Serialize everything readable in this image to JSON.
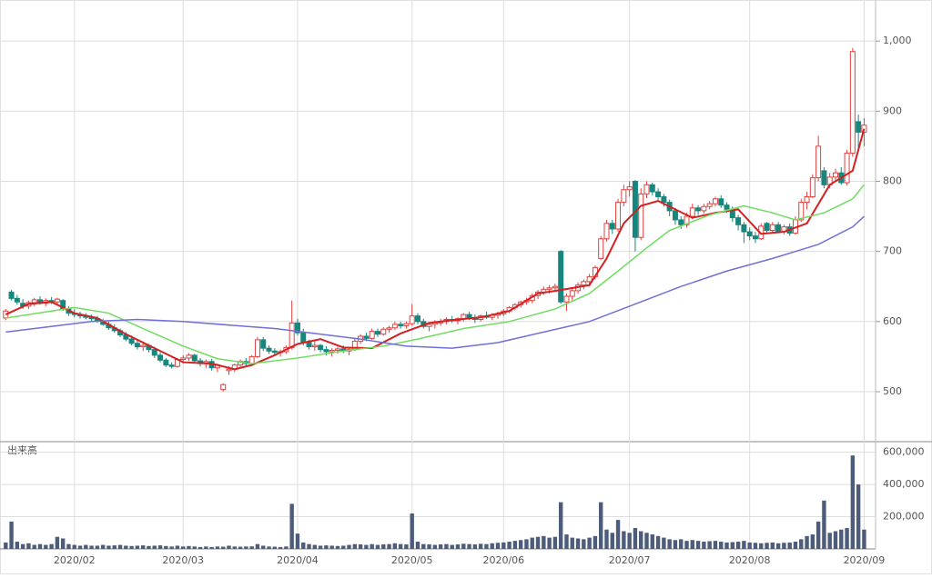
{
  "chart_data": {
    "type": "candlestick",
    "up_color": "#e0403f",
    "down_color": "#17877d",
    "xlim": [
      -1,
      152
    ],
    "xticks": [
      {
        "value": 12,
        "label": "2020/02"
      },
      {
        "value": 31,
        "label": "2020/03"
      },
      {
        "value": 51,
        "label": "2020/04"
      },
      {
        "value": 71,
        "label": "2020/05"
      },
      {
        "value": 87,
        "label": "2020/06"
      },
      {
        "value": 109,
        "label": "2020/07"
      },
      {
        "value": 130,
        "label": "2020/08"
      },
      {
        "value": 150,
        "label": "2020/09"
      }
    ],
    "ylim": [
      430,
      1052
    ],
    "yticks": [
      500,
      600,
      700,
      800,
      900,
      {
        "value": 1000,
        "label": "1,000"
      }
    ],
    "grid": true,
    "ohlc": [
      [
        605,
        618,
        602,
        615
      ],
      [
        642,
        645,
        630,
        633
      ],
      [
        633,
        638,
        624,
        628
      ],
      [
        626,
        632,
        618,
        622
      ],
      [
        622,
        630,
        618,
        627
      ],
      [
        627,
        634,
        622,
        631
      ],
      [
        631,
        636,
        624,
        626
      ],
      [
        626,
        633,
        622,
        630
      ],
      [
        630,
        635,
        625,
        628
      ],
      [
        628,
        634,
        624,
        632
      ],
      [
        630,
        632,
        615,
        618
      ],
      [
        618,
        622,
        608,
        612
      ],
      [
        612,
        618,
        606,
        610
      ],
      [
        610,
        614,
        604,
        608
      ],
      [
        608,
        612,
        603,
        606
      ],
      [
        606,
        610,
        601,
        604
      ],
      [
        604,
        608,
        598,
        601
      ],
      [
        601,
        604,
        594,
        596
      ],
      [
        596,
        600,
        588,
        591
      ],
      [
        591,
        596,
        584,
        587
      ],
      [
        587,
        590,
        578,
        581
      ],
      [
        581,
        585,
        572,
        575
      ],
      [
        575,
        580,
        566,
        569
      ],
      [
        569,
        574,
        560,
        564
      ],
      [
        564,
        570,
        558,
        566
      ],
      [
        566,
        568,
        556,
        560
      ],
      [
        560,
        564,
        548,
        552
      ],
      [
        552,
        556,
        542,
        545
      ],
      [
        545,
        548,
        535,
        538
      ],
      [
        538,
        542,
        533,
        536
      ],
      [
        536,
        548,
        534,
        546
      ],
      [
        546,
        552,
        540,
        548
      ],
      [
        548,
        555,
        544,
        552
      ],
      [
        552,
        554,
        540,
        544
      ],
      [
        544,
        548,
        536,
        540
      ],
      [
        540,
        546,
        534,
        543
      ],
      [
        543,
        547,
        530,
        534
      ],
      [
        534,
        540,
        528,
        538
      ],
      [
        503,
        512,
        500,
        510
      ],
      [
        530,
        536,
        524,
        532
      ],
      [
        532,
        540,
        528,
        538
      ],
      [
        538,
        546,
        534,
        543
      ],
      [
        543,
        548,
        536,
        540
      ],
      [
        540,
        552,
        538,
        550
      ],
      [
        550,
        578,
        548,
        574
      ],
      [
        574,
        578,
        558,
        562
      ],
      [
        562,
        566,
        554,
        558
      ],
      [
        558,
        562,
        552,
        556
      ],
      [
        556,
        560,
        550,
        557
      ],
      [
        557,
        566,
        554,
        563
      ],
      [
        563,
        630,
        560,
        598
      ],
      [
        598,
        604,
        580,
        584
      ],
      [
        584,
        590,
        566,
        570
      ],
      [
        570,
        574,
        560,
        564
      ],
      [
        564,
        572,
        558,
        566
      ],
      [
        566,
        568,
        556,
        560
      ],
      [
        560,
        565,
        552,
        557
      ],
      [
        557,
        562,
        550,
        559
      ],
      [
        559,
        564,
        554,
        561
      ],
      [
        561,
        566,
        555,
        558
      ],
      [
        558,
        563,
        552,
        560
      ],
      [
        560,
        575,
        558,
        572
      ],
      [
        572,
        582,
        568,
        579
      ],
      [
        579,
        584,
        572,
        576
      ],
      [
        576,
        590,
        574,
        586
      ],
      [
        586,
        590,
        578,
        582
      ],
      [
        582,
        592,
        580,
        589
      ],
      [
        589,
        594,
        584,
        591
      ],
      [
        591,
        600,
        588,
        596
      ],
      [
        596,
        600,
        590,
        594
      ],
      [
        594,
        600,
        590,
        597
      ],
      [
        597,
        625,
        594,
        608
      ],
      [
        608,
        612,
        596,
        600
      ],
      [
        600,
        604,
        590,
        593
      ],
      [
        593,
        598,
        586,
        596
      ],
      [
        596,
        602,
        590,
        598
      ],
      [
        598,
        604,
        594,
        600
      ],
      [
        600,
        606,
        596,
        603
      ],
      [
        603,
        608,
        598,
        601
      ],
      [
        601,
        606,
        596,
        604
      ],
      [
        604,
        612,
        600,
        610
      ],
      [
        610,
        614,
        602,
        605
      ],
      [
        605,
        610,
        598,
        603
      ],
      [
        603,
        610,
        600,
        608
      ],
      [
        608,
        614,
        604,
        606
      ],
      [
        606,
        612,
        602,
        609
      ],
      [
        609,
        614,
        604,
        611
      ],
      [
        611,
        618,
        608,
        615
      ],
      [
        615,
        622,
        612,
        620
      ],
      [
        620,
        626,
        616,
        624
      ],
      [
        624,
        630,
        620,
        628
      ],
      [
        628,
        634,
        624,
        630
      ],
      [
        630,
        640,
        626,
        637
      ],
      [
        637,
        645,
        632,
        642
      ],
      [
        642,
        650,
        638,
        646
      ],
      [
        646,
        652,
        640,
        648
      ],
      [
        648,
        654,
        642,
        650
      ],
      [
        700,
        702,
        625,
        628
      ],
      [
        628,
        640,
        615,
        636
      ],
      [
        636,
        648,
        630,
        644
      ],
      [
        644,
        656,
        640,
        652
      ],
      [
        652,
        660,
        646,
        657
      ],
      [
        657,
        668,
        650,
        664
      ],
      [
        664,
        680,
        660,
        677
      ],
      [
        690,
        722,
        688,
        718
      ],
      [
        718,
        745,
        714,
        740
      ],
      [
        740,
        745,
        725,
        732
      ],
      [
        732,
        775,
        728,
        770
      ],
      [
        770,
        795,
        764,
        788
      ],
      [
        788,
        800,
        778,
        792
      ],
      [
        800,
        802,
        700,
        720
      ],
      [
        720,
        790,
        716,
        782
      ],
      [
        782,
        800,
        776,
        795
      ],
      [
        795,
        798,
        780,
        785
      ],
      [
        785,
        790,
        772,
        778
      ],
      [
        778,
        782,
        764,
        770
      ],
      [
        770,
        774,
        750,
        758
      ],
      [
        758,
        762,
        738,
        745
      ],
      [
        745,
        750,
        732,
        738
      ],
      [
        738,
        755,
        734,
        750
      ],
      [
        750,
        768,
        746,
        762
      ],
      [
        762,
        766,
        752,
        758
      ],
      [
        758,
        768,
        754,
        764
      ],
      [
        764,
        772,
        760,
        768
      ],
      [
        768,
        778,
        764,
        775
      ],
      [
        775,
        780,
        762,
        766
      ],
      [
        766,
        770,
        755,
        760
      ],
      [
        760,
        764,
        742,
        748
      ],
      [
        748,
        752,
        730,
        738
      ],
      [
        738,
        742,
        712,
        728
      ],
      [
        728,
        734,
        716,
        722
      ],
      [
        722,
        728,
        712,
        718
      ],
      [
        718,
        740,
        716,
        736
      ],
      [
        740,
        742,
        726,
        730
      ],
      [
        730,
        742,
        726,
        738
      ],
      [
        738,
        742,
        726,
        728
      ],
      [
        728,
        738,
        724,
        735
      ],
      [
        735,
        740,
        722,
        726
      ],
      [
        726,
        750,
        724,
        745
      ],
      [
        745,
        775,
        742,
        770
      ],
      [
        770,
        785,
        760,
        778
      ],
      [
        778,
        810,
        776,
        805
      ],
      [
        805,
        865,
        800,
        850
      ],
      [
        815,
        820,
        790,
        795
      ],
      [
        795,
        812,
        790,
        806
      ],
      [
        806,
        818,
        800,
        812
      ],
      [
        812,
        820,
        795,
        798
      ],
      [
        798,
        845,
        794,
        840
      ],
      [
        840,
        990,
        835,
        985
      ],
      [
        885,
        895,
        845,
        870
      ],
      [
        870,
        890,
        850,
        880
      ]
    ],
    "ma": [
      {
        "color": "#d42020",
        "x": [
          0,
          4,
          8,
          12,
          16,
          21,
          26,
          31,
          36,
          40,
          43,
          47,
          51,
          55,
          59,
          64,
          69,
          74,
          78,
          83,
          88,
          93,
          97,
          102,
          105,
          108,
          111,
          114,
          117,
          120,
          124,
          128,
          132,
          136,
          140,
          144,
          148,
          150
        ],
        "values": [
          610,
          625,
          628,
          612,
          605,
          582,
          562,
          542,
          540,
          532,
          538,
          552,
          568,
          575,
          563,
          562,
          583,
          598,
          602,
          606,
          615,
          640,
          645,
          652,
          690,
          740,
          765,
          772,
          760,
          748,
          755,
          760,
          725,
          728,
          740,
          795,
          815,
          875
        ]
      },
      {
        "color": "#6fdc60",
        "x": [
          0,
          12,
          18,
          24,
          31,
          37,
          43,
          51,
          59,
          66,
          72,
          80,
          88,
          96,
          102,
          107,
          112,
          116,
          123,
          129,
          134,
          138,
          143,
          148,
          150
        ],
        "values": [
          605,
          620,
          612,
          590,
          565,
          547,
          540,
          548,
          558,
          565,
          575,
          590,
          600,
          618,
          640,
          672,
          705,
          730,
          752,
          765,
          755,
          745,
          755,
          775,
          795
        ]
      },
      {
        "color": "#6f6fd8",
        "x": [
          0,
          15,
          23,
          31,
          47,
          62,
          70,
          78,
          86,
          94,
          102,
          110,
          118,
          126,
          134,
          142,
          148,
          150
        ],
        "values": [
          585,
          600,
          603,
          600,
          590,
          575,
          565,
          562,
          570,
          585,
          600,
          625,
          650,
          672,
          690,
          710,
          735,
          750
        ]
      }
    ],
    "volume": {
      "label": "出来高",
      "color": "#4c5c7a",
      "ylim": [
        0,
        660000
      ],
      "yticks": [
        {
          "value": 200000,
          "label": "200,000"
        },
        {
          "value": 400000,
          "label": "400,000"
        },
        {
          "value": 600000,
          "label": "600,000"
        }
      ],
      "values": [
        40000,
        170000,
        45000,
        30000,
        35000,
        25000,
        30000,
        25000,
        30000,
        75000,
        65000,
        30000,
        25000,
        20000,
        25000,
        20000,
        20000,
        25000,
        20000,
        22000,
        25000,
        20000,
        18000,
        20000,
        22000,
        18000,
        20000,
        22000,
        18000,
        15000,
        20000,
        15000,
        18000,
        15000,
        12000,
        15000,
        12000,
        15000,
        14000,
        20000,
        15000,
        14000,
        15000,
        16000,
        30000,
        20000,
        15000,
        14000,
        12000,
        15000,
        280000,
        95000,
        40000,
        30000,
        25000,
        20000,
        22000,
        20000,
        18000,
        20000,
        25000,
        30000,
        28000,
        25000,
        30000,
        25000,
        28000,
        30000,
        35000,
        30000,
        28000,
        220000,
        45000,
        30000,
        28000,
        25000,
        28000,
        30000,
        25000,
        28000,
        32000,
        30000,
        28000,
        32000,
        30000,
        35000,
        38000,
        40000,
        45000,
        50000,
        55000,
        60000,
        70000,
        75000,
        80000,
        70000,
        75000,
        290000,
        90000,
        70000,
        65000,
        60000,
        70000,
        80000,
        290000,
        120000,
        100000,
        180000,
        110000,
        100000,
        130000,
        110000,
        100000,
        90000,
        80000,
        70000,
        60000,
        55000,
        60000,
        50000,
        55000,
        50000,
        45000,
        48000,
        50000,
        45000,
        40000,
        42000,
        45000,
        50000,
        40000,
        38000,
        35000,
        38000,
        40000,
        35000,
        38000,
        40000,
        45000,
        60000,
        80000,
        90000,
        170000,
        300000,
        100000,
        110000,
        120000,
        130000,
        580000,
        400000,
        120000
      ]
    }
  }
}
